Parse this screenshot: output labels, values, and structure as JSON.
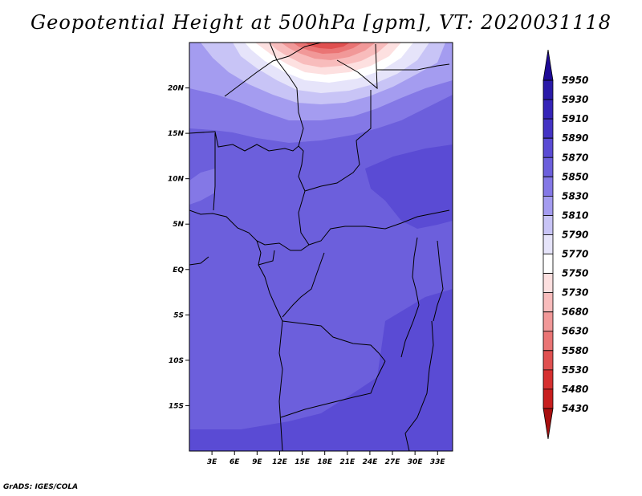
{
  "title": "Geopotential Height at 500hPa [gpm], VT: 2020031118",
  "footer": "GrADS: IGES/COLA",
  "chart_data": {
    "type": "heatmap",
    "title": "Geopotential Height at 500hPa [gpm], VT: 2020031118",
    "variable": "Geopotential Height at 500hPa",
    "units": "gpm",
    "valid_time": "2020031118",
    "lon_range_deg": [
      0,
      35
    ],
    "lat_range_deg": [
      -20,
      25
    ],
    "x_ticks": [
      "3E",
      "6E",
      "9E",
      "12E",
      "15E",
      "18E",
      "21E",
      "24E",
      "27E",
      "30E",
      "33E"
    ],
    "x_tick_values": [
      3,
      6,
      9,
      12,
      15,
      18,
      21,
      24,
      27,
      30,
      33
    ],
    "y_ticks": [
      "20N",
      "15N",
      "10N",
      "5N",
      "EQ",
      "5S",
      "10S",
      "15S"
    ],
    "y_tick_values": [
      20,
      15,
      10,
      5,
      0,
      -5,
      -10,
      -15
    ],
    "colorbar": {
      "labels": [
        "5950",
        "5930",
        "5910",
        "5890",
        "5870",
        "5850",
        "5830",
        "5810",
        "5790",
        "5770",
        "5750",
        "5730",
        "5680",
        "5630",
        "5580",
        "5530",
        "5480",
        "5430"
      ],
      "colors": [
        "#1e0a96",
        "#2a1aa8",
        "#3524b8",
        "#4433c4",
        "#5a4bd4",
        "#6c5fdc",
        "#8478e6",
        "#a49cf0",
        "#c8c4f6",
        "#e6e4fa",
        "#ffffff",
        "#fde0e0",
        "#f8bcbc",
        "#f19898",
        "#ea7474",
        "#e05050",
        "#d63030",
        "#c81e1e",
        "#a80f0f"
      ]
    },
    "field": {
      "background": "#6c5fdc",
      "regions": [
        {
          "label": "5850",
          "color": "#6c5fdc"
        },
        {
          "label": "5870",
          "color": "#5a4bd4"
        },
        {
          "label": "5830",
          "color": "#8478e6"
        },
        {
          "label": "5810",
          "color": "#a49cf0"
        },
        {
          "label": "5790",
          "color": "#c8c4f6"
        },
        {
          "label": "5770",
          "color": "#e6e4fa"
        },
        {
          "label": "5750",
          "color": "#ffffff"
        },
        {
          "label": "5730",
          "color": "#fde0e0"
        },
        {
          "label": "5680",
          "color": "#f8bcbc"
        },
        {
          "label": "5630",
          "color": "#f19898"
        },
        {
          "label": "5580",
          "color": "#ea7474"
        },
        {
          "label": "5530",
          "color": "#e05050"
        }
      ]
    }
  }
}
